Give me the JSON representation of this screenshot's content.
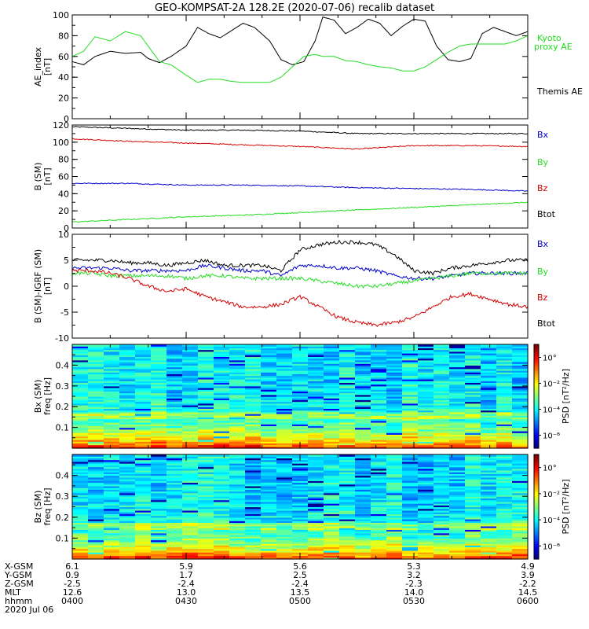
{
  "title": "GEO-KOMPSAT-2A 128.2E (2020-07-06) recalib dataset",
  "colors": {
    "black": "#000000",
    "red": "#d40000",
    "blue": "#0000cc",
    "green": "#22dd22"
  },
  "chart_data": [
    {
      "type": "line",
      "panel": "ae",
      "ylabel": [
        "AE_index",
        "[nT]"
      ],
      "ylim": [
        0,
        100
      ],
      "yticks": [
        0,
        20,
        40,
        60,
        80,
        100
      ],
      "ytick_labels": [
        "0",
        "20",
        "40",
        "60",
        "80",
        "100"
      ],
      "xlim": [
        0,
        120
      ],
      "legend": [
        {
          "text": "Kyoto",
          "color": "#22dd22"
        },
        {
          "text": "proxy AE",
          "color": "#22dd22"
        },
        {
          "text": "Themis AE",
          "color": "#000000"
        }
      ],
      "series": [
        {
          "name": "Themis AE",
          "color": "#000000",
          "x": [
            0,
            3,
            6,
            10,
            14,
            18,
            20,
            23,
            26,
            30,
            33,
            36,
            39,
            42,
            45,
            48,
            52,
            55,
            58,
            61,
            64,
            66,
            69,
            72,
            75,
            78,
            81,
            84,
            87,
            90,
            93,
            96,
            99,
            102,
            105,
            108,
            111,
            114,
            117,
            120
          ],
          "y": [
            55,
            52,
            60,
            65,
            63,
            64,
            58,
            54,
            60,
            70,
            88,
            82,
            78,
            85,
            92,
            88,
            75,
            57,
            52,
            55,
            75,
            98,
            95,
            82,
            88,
            96,
            92,
            80,
            89,
            96,
            94,
            70,
            57,
            55,
            58,
            82,
            88,
            84,
            80,
            84
          ]
        },
        {
          "name": "Kyoto proxy AE",
          "color": "#22dd22",
          "x": [
            0,
            3,
            6,
            10,
            14,
            18,
            20,
            23,
            26,
            30,
            33,
            36,
            39,
            42,
            45,
            48,
            52,
            55,
            58,
            61,
            64,
            66,
            69,
            72,
            75,
            78,
            81,
            84,
            87,
            90,
            93,
            96,
            99,
            102,
            105,
            108,
            111,
            114,
            117,
            120
          ],
          "y": [
            60,
            65,
            79,
            75,
            84,
            80,
            70,
            55,
            52,
            42,
            35,
            38,
            38,
            36,
            35,
            35,
            35,
            40,
            50,
            60,
            62,
            60,
            60,
            56,
            55,
            52,
            50,
            49,
            46,
            46,
            50,
            57,
            64,
            70,
            72,
            72,
            72,
            72,
            75,
            80
          ]
        }
      ]
    },
    {
      "type": "line",
      "panel": "b_sm",
      "ylabel": [
        "B (SM)",
        "[nT]"
      ],
      "ylim": [
        0,
        120
      ],
      "yticks": [
        0,
        20,
        40,
        60,
        80,
        100,
        120
      ],
      "ytick_labels": [
        "0",
        "20",
        "40",
        "60",
        "80",
        "100",
        "120"
      ],
      "xlim": [
        0,
        120
      ],
      "legend": [
        {
          "text": "Bx",
          "color": "#0000cc"
        },
        {
          "text": "By",
          "color": "#22dd22"
        },
        {
          "text": "Bz",
          "color": "#d40000"
        },
        {
          "text": "Btot",
          "color": "#000000"
        }
      ],
      "series": [
        {
          "name": "Btot",
          "color": "#000000",
          "x": [
            0,
            15,
            30,
            45,
            60,
            75,
            90,
            105,
            120
          ],
          "y": [
            118,
            116,
            114,
            114,
            113,
            110,
            110,
            110,
            110
          ]
        },
        {
          "name": "Bz",
          "color": "#d40000",
          "x": [
            0,
            15,
            30,
            45,
            60,
            75,
            90,
            105,
            120
          ],
          "y": [
            104,
            101,
            99,
            97,
            95,
            92,
            96,
            96,
            95
          ]
        },
        {
          "name": "Bx",
          "color": "#0000cc",
          "x": [
            0,
            15,
            30,
            45,
            60,
            75,
            90,
            105,
            120
          ],
          "y": [
            52,
            52,
            50,
            50,
            49,
            47,
            46,
            45,
            43
          ]
        },
        {
          "name": "By",
          "color": "#22dd22",
          "x": [
            0,
            15,
            30,
            45,
            60,
            75,
            90,
            105,
            120
          ],
          "y": [
            7,
            10,
            13,
            15,
            18,
            21,
            24,
            27,
            30
          ]
        }
      ]
    },
    {
      "type": "line",
      "panel": "b_sm_igrf",
      "ylabel": [
        "B (SM)-IGRF (SM)",
        "[nT]"
      ],
      "ylim": [
        -10,
        10
      ],
      "yticks": [
        -10,
        -5,
        0,
        5,
        10
      ],
      "ytick_labels": [
        "-10",
        "-5",
        "0",
        "5",
        "10"
      ],
      "xlim": [
        0,
        120
      ],
      "legend": [
        {
          "text": "Bx",
          "color": "#0000cc"
        },
        {
          "text": "By",
          "color": "#22dd22"
        },
        {
          "text": "Bz",
          "color": "#d40000"
        },
        {
          "text": "Btot",
          "color": "#000000"
        }
      ],
      "series": [
        {
          "name": "Btot",
          "color": "#000000",
          "x": [
            0,
            5,
            10,
            15,
            20,
            25,
            30,
            35,
            40,
            45,
            50,
            55,
            60,
            65,
            70,
            75,
            80,
            85,
            90,
            95,
            100,
            105,
            110,
            115,
            120
          ],
          "y": [
            5,
            5,
            5,
            4.5,
            4.5,
            4,
            4.5,
            5,
            4,
            4,
            4,
            3,
            7,
            8,
            8.5,
            8.5,
            8,
            6,
            3,
            2.5,
            3.5,
            4,
            4.5,
            5,
            5
          ]
        },
        {
          "name": "Bx",
          "color": "#0000cc",
          "x": [
            0,
            5,
            10,
            15,
            20,
            25,
            30,
            35,
            40,
            45,
            50,
            55,
            60,
            65,
            70,
            75,
            80,
            85,
            90,
            95,
            100,
            105,
            110,
            115,
            120
          ],
          "y": [
            3.5,
            3.5,
            3.5,
            3,
            3,
            3,
            3,
            4,
            3.5,
            3,
            3,
            2,
            4,
            4,
            3.5,
            3.5,
            3,
            2,
            1.5,
            1.5,
            2,
            2.5,
            2.5,
            2.5,
            2.5
          ]
        },
        {
          "name": "By",
          "color": "#22dd22",
          "x": [
            0,
            5,
            10,
            15,
            20,
            25,
            30,
            35,
            40,
            45,
            50,
            55,
            60,
            65,
            70,
            75,
            80,
            85,
            90,
            95,
            100,
            105,
            110,
            115,
            120
          ],
          "y": [
            2.5,
            2.5,
            2,
            2,
            2,
            2,
            1.5,
            2,
            2,
            1.5,
            1.5,
            1.5,
            1.5,
            1,
            0.5,
            0,
            0,
            0.5,
            1,
            1.5,
            2,
            2.5,
            2.5,
            2.5,
            2.5
          ]
        },
        {
          "name": "Bz",
          "color": "#d40000",
          "x": [
            0,
            5,
            10,
            15,
            20,
            25,
            30,
            35,
            40,
            45,
            50,
            55,
            60,
            65,
            70,
            75,
            80,
            85,
            90,
            95,
            100,
            105,
            110,
            115,
            120
          ],
          "y": [
            3,
            3,
            2.5,
            1.5,
            0,
            -1,
            -0.5,
            -2,
            -3,
            -4,
            -4,
            -3.5,
            -2,
            -4,
            -6,
            -7,
            -7.5,
            -7,
            -6,
            -4,
            -2,
            -1.5,
            -2.5,
            -3.5,
            -4
          ]
        }
      ]
    },
    {
      "type": "heatmap",
      "panel": "bx_psd",
      "ylabel": [
        "Bx (SM)",
        "freq [Hz]"
      ],
      "ylim": [
        0,
        0.5
      ],
      "yticks": [
        0.1,
        0.2,
        0.3,
        0.4
      ],
      "ytick_labels": [
        "0.1",
        "0.2",
        "0.3",
        "0.4"
      ],
      "colorbar_label": "PSD [nT²/Hz]",
      "colorbar_ticks": [
        "10°",
        "10⁻²",
        "10⁻⁴",
        "10⁻⁶"
      ],
      "colorbar_exponents": [
        0,
        -2,
        -4,
        -6
      ],
      "colorbar_range": [
        -7,
        1
      ]
    },
    {
      "type": "heatmap",
      "panel": "bz_psd",
      "ylabel": [
        "Bz (SM)",
        "freq [Hz]"
      ],
      "ylim": [
        0,
        0.5
      ],
      "yticks": [
        0.1,
        0.2,
        0.3,
        0.4
      ],
      "ytick_labels": [
        "0.1",
        "0.2",
        "0.3",
        "0.4"
      ],
      "colorbar_label": "PSD [nT²/Hz]",
      "colorbar_ticks": [
        "10°",
        "10⁻²",
        "10⁻⁴",
        "10⁻⁶"
      ],
      "colorbar_exponents": [
        0,
        -2,
        -4,
        -6
      ],
      "colorbar_range": [
        -7,
        1
      ]
    }
  ],
  "ephemeris": {
    "row_labels": [
      "X-GSM",
      "Y-GSM",
      "Z-GSM",
      "MLT",
      "hhmm",
      "2020 Jul 06"
    ],
    "columns": [
      {
        "x": 0,
        "values": [
          "6.1",
          "0.9",
          "-2.5",
          "12.6",
          "0400"
        ]
      },
      {
        "x": 30,
        "values": [
          "5.9",
          "1.7",
          "-2.4",
          "13.0",
          "0430"
        ]
      },
      {
        "x": 60,
        "values": [
          "5.6",
          "2.5",
          "-2.4",
          "13.5",
          "0500"
        ]
      },
      {
        "x": 90,
        "values": [
          "5.3",
          "3.2",
          "-2.3",
          "14.0",
          "0530"
        ]
      },
      {
        "x": 120,
        "values": [
          "4.9",
          "3.9",
          "-2.2",
          "14.5",
          "0600"
        ]
      }
    ]
  }
}
